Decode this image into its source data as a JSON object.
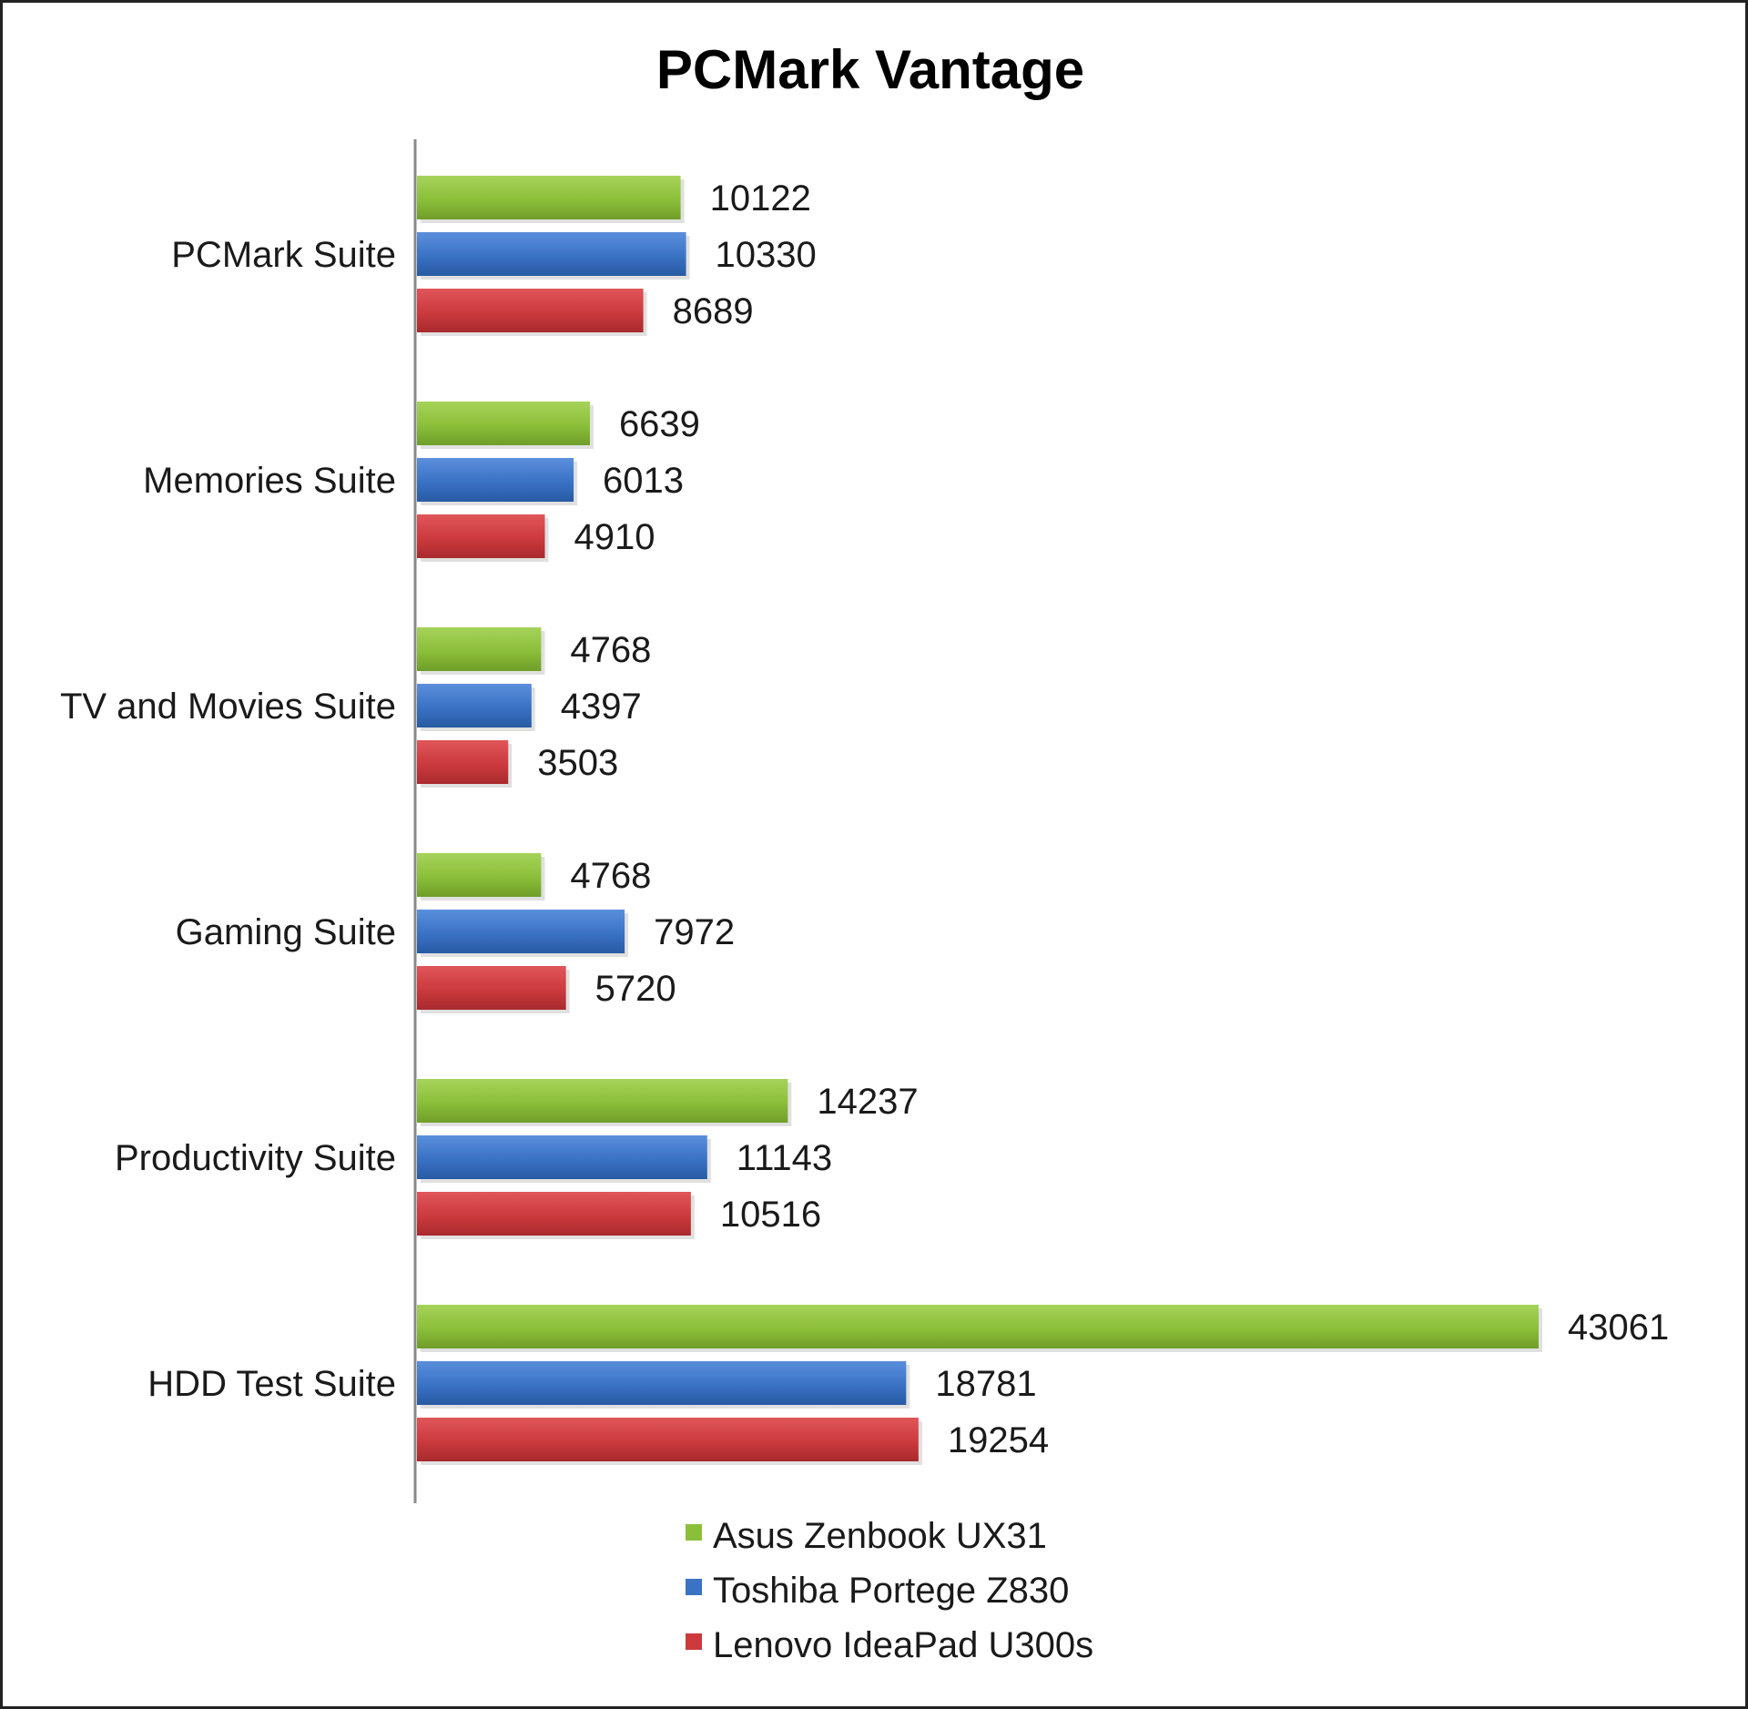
{
  "chart_data": {
    "type": "bar",
    "orientation": "horizontal",
    "title": "PCMark Vantage",
    "categories": [
      "PCMark Suite",
      "Memories Suite",
      "TV and Movies Suite",
      "Gaming Suite",
      "Productivity Suite",
      "HDD Test Suite"
    ],
    "series": [
      {
        "name": "Asus Zenbook UX31",
        "color": "#8bbf3a",
        "values": [
          10122,
          6639,
          4768,
          4768,
          14237,
          43061
        ]
      },
      {
        "name": "Toshiba Portege Z830",
        "color": "#3a72c4",
        "values": [
          10330,
          6013,
          4397,
          7972,
          11143,
          18781
        ]
      },
      {
        "name": "Lenovo IdeaPad U300s",
        "color": "#cc3a3d",
        "values": [
          8689,
          4910,
          3503,
          5720,
          10516,
          19254
        ]
      }
    ],
    "xlim": [
      0,
      45000
    ],
    "grid": false,
    "legend": "bottom"
  }
}
